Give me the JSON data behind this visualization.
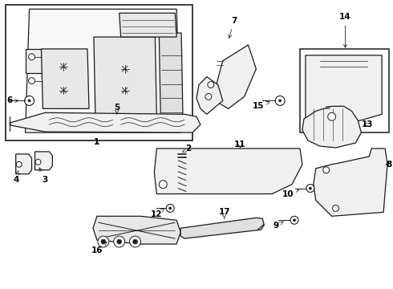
{
  "bg_color": "#ffffff",
  "line_color": "#1a1a1a",
  "fig_width": 4.9,
  "fig_height": 3.6,
  "dpi": 100,
  "label_fontsize": 7.5,
  "arrow_lw": 0.55,
  "part_lw": 0.9
}
